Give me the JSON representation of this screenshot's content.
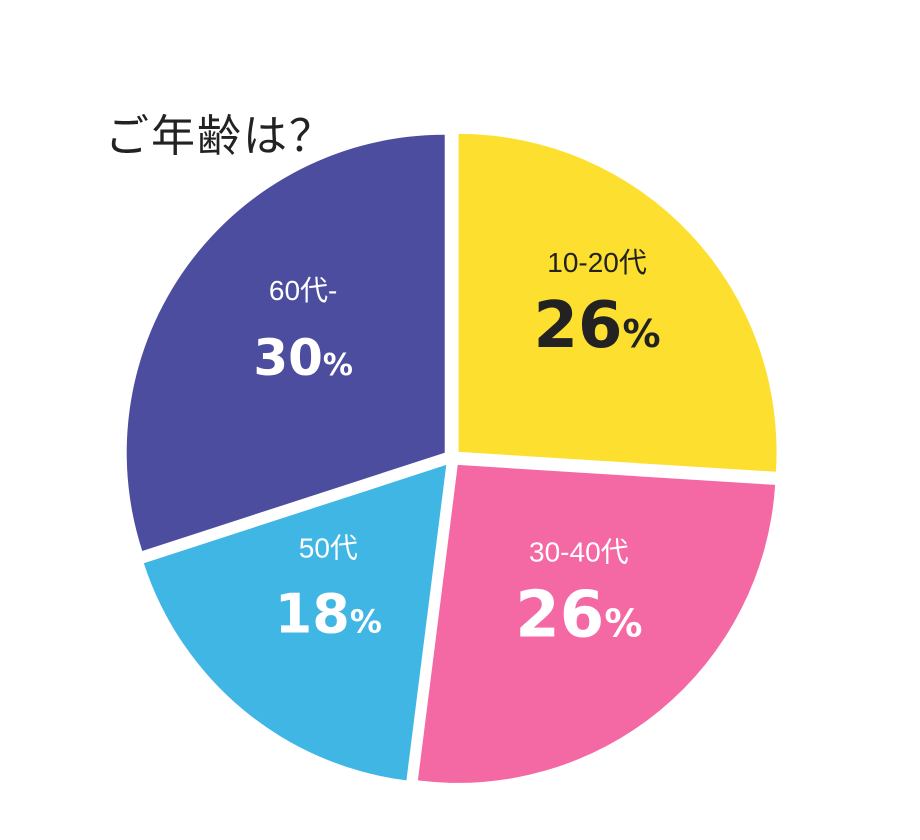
{
  "title": "ご年齢は？",
  "chart_data": {
    "type": "pie",
    "title": "ご年齢は？",
    "slices": [
      {
        "label": "10-20代",
        "value": 26,
        "display": "26",
        "unit": "%",
        "color": "#FDE02F",
        "text_color": "#222222"
      },
      {
        "label": "30-40代",
        "value": 26,
        "display": "26",
        "unit": "%",
        "color": "#F468A4",
        "text_color": "#FFFFFF"
      },
      {
        "label": "50代",
        "value": 18,
        "display": "18",
        "unit": "%",
        "color": "#40B6E4",
        "text_color": "#FFFFFF"
      },
      {
        "label": "60代-",
        "value": 30,
        "display": "30",
        "unit": "%",
        "color": "#4D4D9F",
        "text_color": "#FFFFFF"
      }
    ]
  }
}
